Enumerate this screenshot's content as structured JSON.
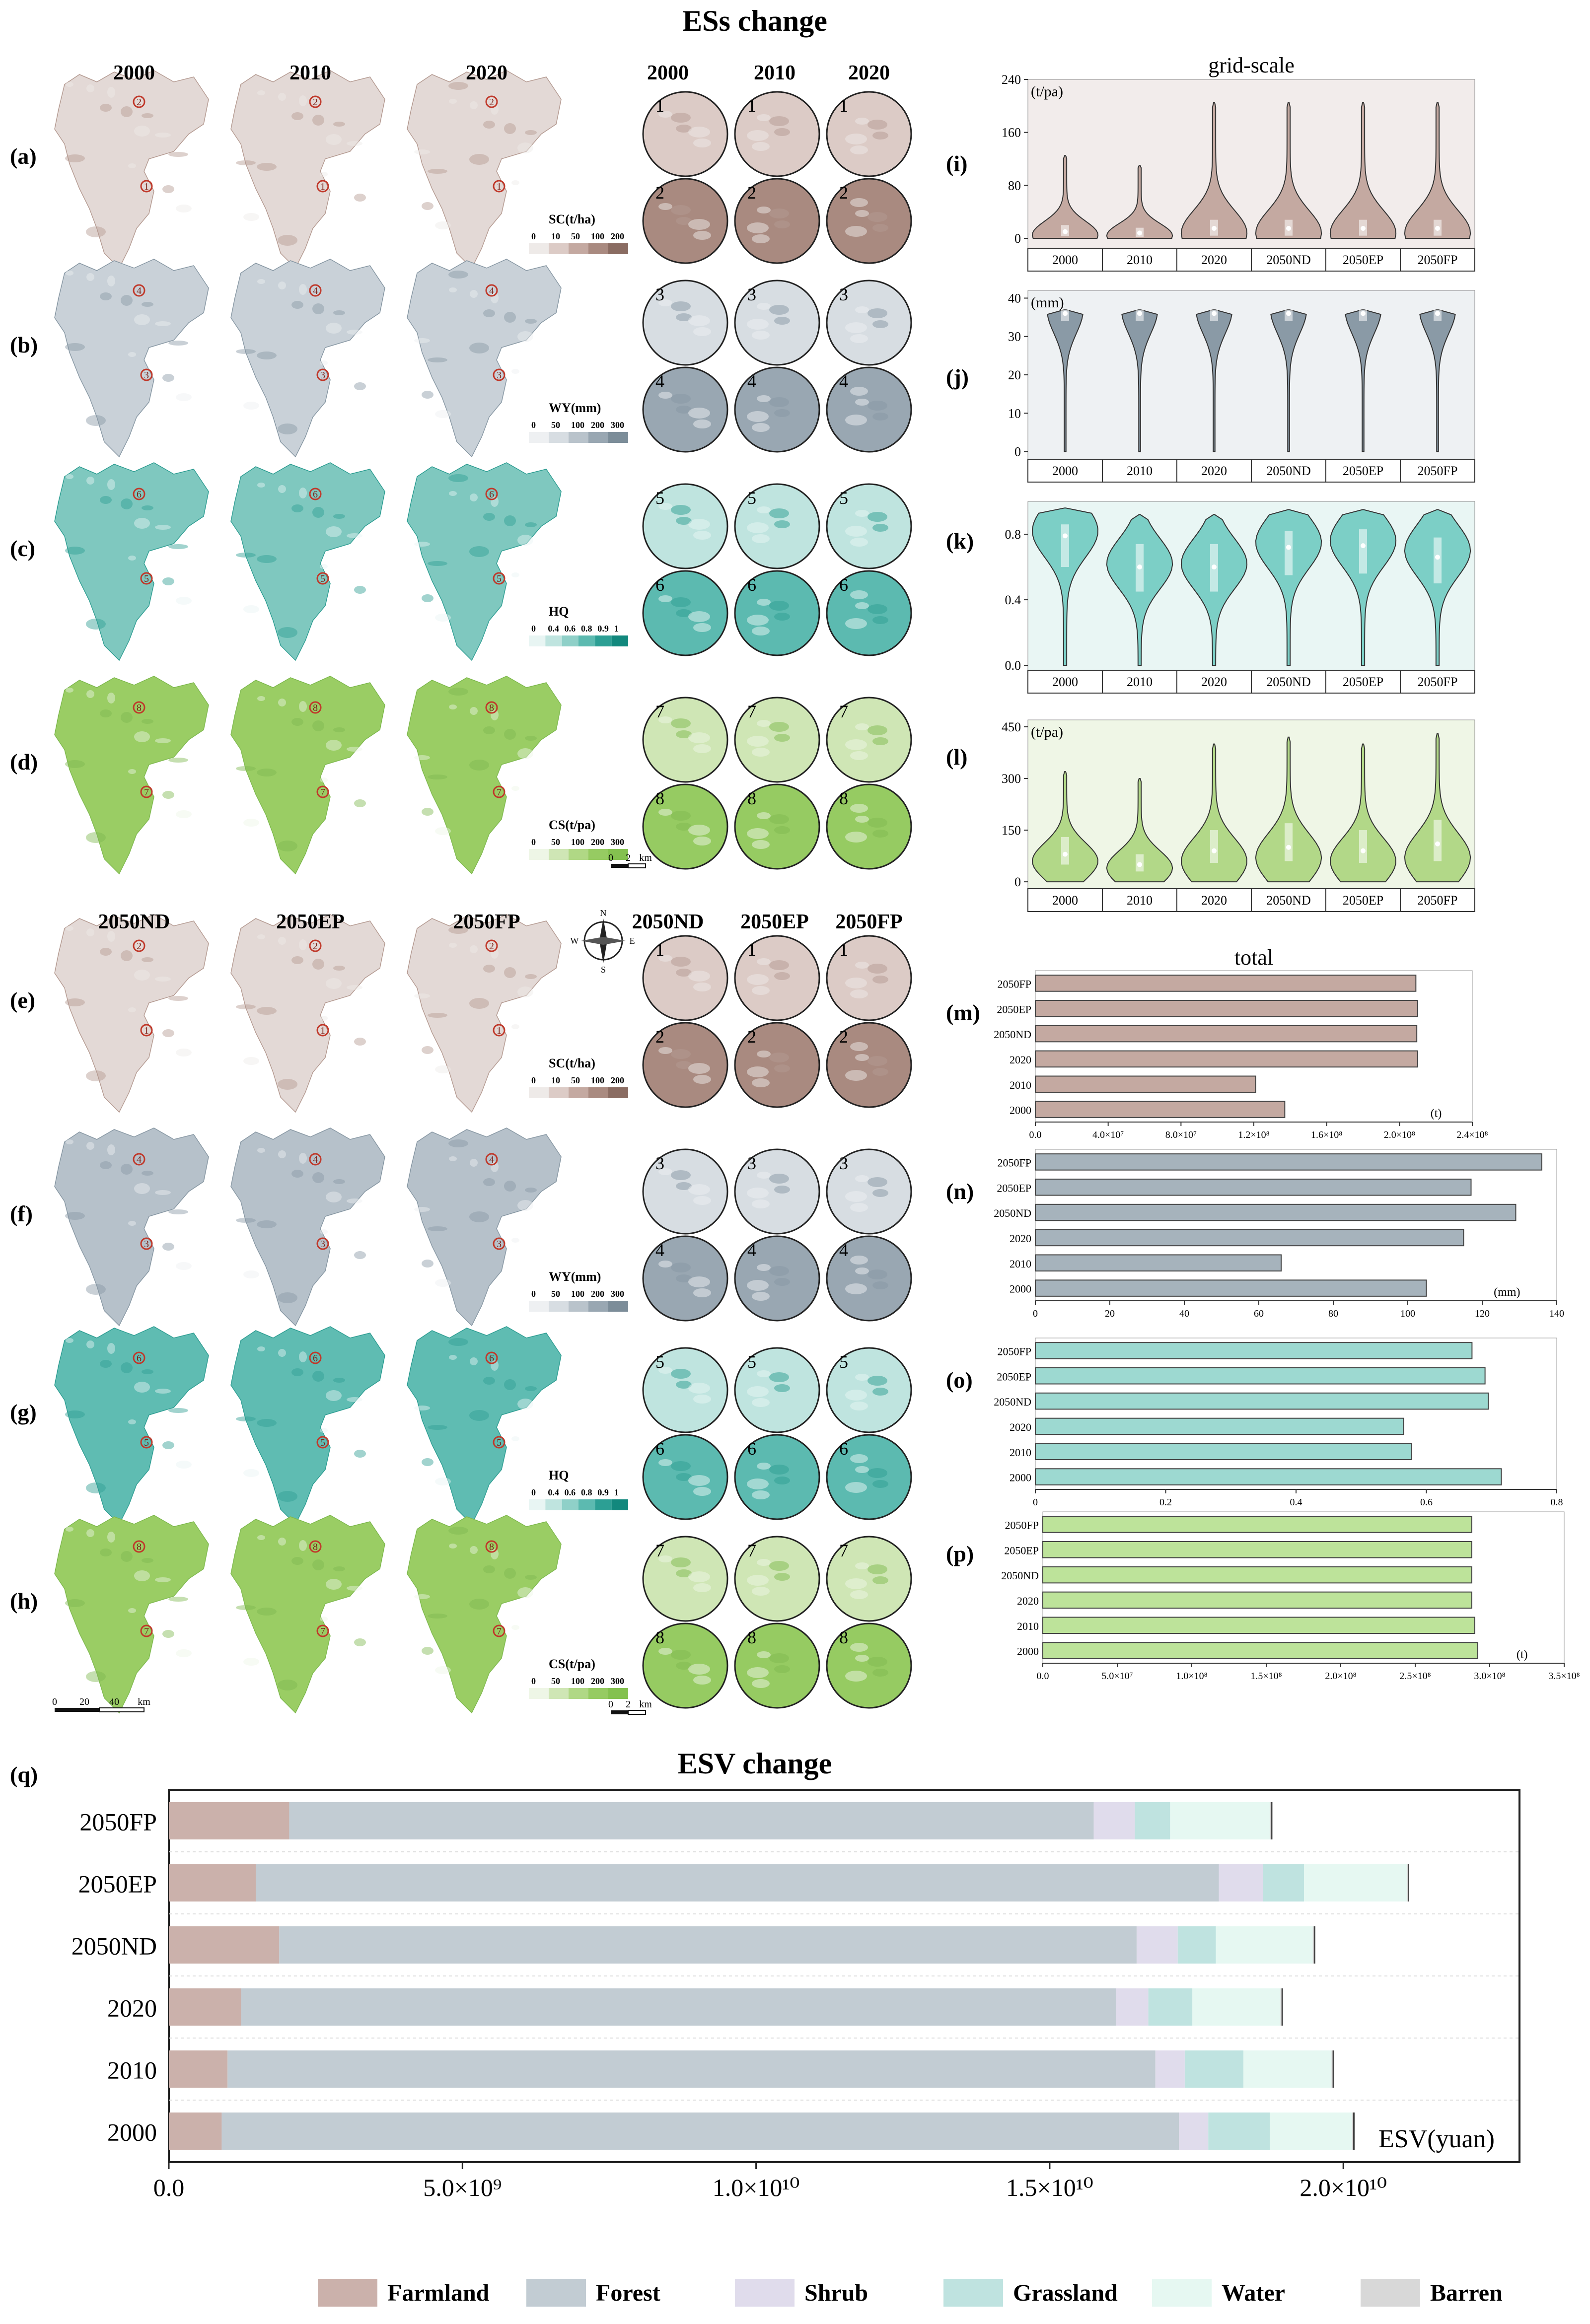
{
  "titles": {
    "top": "ESs change",
    "bottom": "ESV change"
  },
  "map_panels": {
    "year_labels_top": [
      "2000",
      "2010",
      "2020"
    ],
    "year_labels_bottom": [
      "2050ND",
      "2050EP",
      "2050FP"
    ],
    "zoom_labels_top": [
      "2000",
      "2010",
      "2020"
    ],
    "zoom_labels_bottom": [
      "2050ND",
      "2050EP",
      "2050FP"
    ],
    "rows": [
      {
        "letter": "(a)",
        "legend_title": "SC(t/ha)",
        "ticks": [
          "0",
          "10",
          "50",
          "100",
          "200"
        ],
        "colors": [
          "#eeeae8",
          "#dccbc6",
          "#c4a9a1",
          "#a98a80",
          "#8a6c62"
        ],
        "markers": [
          "2",
          "1"
        ],
        "zoom_ids": [
          "1",
          "2"
        ],
        "base": "#e3d9d6",
        "dark": "#b49a91"
      },
      {
        "letter": "(b)",
        "legend_title": "WY(mm)",
        "ticks": [
          "0",
          "50",
          "100",
          "200",
          "300"
        ],
        "colors": [
          "#eef0f2",
          "#d7dde2",
          "#b9c3cb",
          "#99a7b2",
          "#7c8d99"
        ],
        "markers": [
          "4",
          "3"
        ],
        "zoom_ids": [
          "3",
          "4"
        ],
        "base": "#c9d1d8",
        "dark": "#8797a3"
      },
      {
        "letter": "(c)",
        "legend_title": "HQ",
        "ticks": [
          "0",
          "0.4",
          "0.6",
          "0.8",
          "0.9",
          "1"
        ],
        "colors": [
          "#e8f5f3",
          "#bfe4df",
          "#8fd0c8",
          "#5cbab0",
          "#2c9f94",
          "#12887d"
        ],
        "markers": [
          "6",
          "5"
        ],
        "zoom_ids": [
          "5",
          "6"
        ],
        "base": "#7fc8bf",
        "dark": "#2e9d92"
      },
      {
        "letter": "(d)",
        "legend_title": "CS(t/pa)",
        "ticks": [
          "0",
          "50",
          "100",
          "200",
          "300"
        ],
        "colors": [
          "#eef6e6",
          "#cfe6b5",
          "#b0d885",
          "#96cb62",
          "#84c14f"
        ],
        "markers": [
          "8",
          "7"
        ],
        "zoom_ids": [
          "7",
          "8"
        ],
        "base": "#9acd64",
        "dark": "#7fb94f"
      },
      {
        "letter": "(e)",
        "legend_title": "SC(t/ha)",
        "ticks": [
          "0",
          "10",
          "50",
          "100",
          "200"
        ],
        "colors": [
          "#eeeae8",
          "#dccbc6",
          "#c4a9a1",
          "#a98a80",
          "#8a6c62"
        ],
        "markers": [
          "2",
          "1"
        ],
        "zoom_ids": [
          "1",
          "2"
        ],
        "base": "#e3d9d6",
        "dark": "#b49a91"
      },
      {
        "letter": "(f)",
        "legend_title": "WY(mm)",
        "ticks": [
          "0",
          "50",
          "100",
          "200",
          "300"
        ],
        "colors": [
          "#eef0f2",
          "#d7dde2",
          "#b9c3cb",
          "#99a7b2",
          "#7c8d99"
        ],
        "markers": [
          "4",
          "3"
        ],
        "zoom_ids": [
          "3",
          "4"
        ],
        "base": "#b6c1ca",
        "dark": "#8797a3"
      },
      {
        "letter": "(g)",
        "legend_title": "HQ",
        "ticks": [
          "0",
          "0.4",
          "0.6",
          "0.8",
          "0.9",
          "1"
        ],
        "colors": [
          "#e8f5f3",
          "#bfe4df",
          "#8fd0c8",
          "#5cbab0",
          "#2c9f94",
          "#12887d"
        ],
        "markers": [
          "6",
          "5"
        ],
        "zoom_ids": [
          "5",
          "6"
        ],
        "base": "#5fbcb2",
        "dark": "#2e9d92"
      },
      {
        "letter": "(h)",
        "legend_title": "CS(t/pa)",
        "ticks": [
          "0",
          "50",
          "100",
          "200",
          "300"
        ],
        "colors": [
          "#eef6e6",
          "#cfe6b5",
          "#b0d885",
          "#96cb62",
          "#84c14f"
        ],
        "markers": [
          "8",
          "7"
        ],
        "zoom_ids": [
          "7",
          "8"
        ],
        "base": "#9acd64",
        "dark": "#7fb94f"
      }
    ],
    "scalebar_small": [
      "0",
      "2",
      "km"
    ],
    "scalebar_big": [
      "0",
      "20",
      "40",
      "km"
    ],
    "compass": [
      "N",
      "S",
      "W",
      "E"
    ]
  },
  "chart_data": [
    {
      "id": "i",
      "label": "(i)",
      "type": "violin",
      "title": "grid-scale",
      "ylabel": "(t/pa)",
      "categories": [
        "2000",
        "2010",
        "2020",
        "2050ND",
        "2050EP",
        "2050FP"
      ],
      "ylim": [
        -15,
        240
      ],
      "yticks": [
        0,
        80,
        160,
        240
      ],
      "color": "#c4a9a1",
      "bg": "#f2eceb",
      "series": [
        {
          "max": 125,
          "median": 10,
          "q1": 3,
          "q3": 20,
          "mode": 5,
          "width": 1.0
        },
        {
          "max": 110,
          "median": 8,
          "q1": 2,
          "q3": 16,
          "mode": 4,
          "width": 1.0
        },
        {
          "max": 205,
          "median": 15,
          "q1": 4,
          "q3": 28,
          "mode": 8,
          "width": 1.0
        },
        {
          "max": 205,
          "median": 15,
          "q1": 4,
          "q3": 28,
          "mode": 8,
          "width": 1.0
        },
        {
          "max": 205,
          "median": 15,
          "q1": 4,
          "q3": 28,
          "mode": 8,
          "width": 1.0
        },
        {
          "max": 205,
          "median": 15,
          "q1": 4,
          "q3": 28,
          "mode": 8,
          "width": 1.0
        }
      ]
    },
    {
      "id": "j",
      "label": "(j)",
      "type": "violin",
      "title": "",
      "ylabel": "(mm)",
      "categories": [
        "2000",
        "2010",
        "2020",
        "2050ND",
        "2050EP",
        "2050FP"
      ],
      "ylim": [
        -2,
        42
      ],
      "yticks": [
        0,
        10,
        20,
        30,
        40
      ],
      "color": "#8a9aa6",
      "bg": "#eef1f3",
      "series": [
        {
          "max": 37,
          "median": 36,
          "q1": 34,
          "q3": 37,
          "mode": 37,
          "width": 0.55
        },
        {
          "max": 37,
          "median": 36,
          "q1": 34,
          "q3": 37,
          "mode": 37,
          "width": 0.55
        },
        {
          "max": 37,
          "median": 36,
          "q1": 34,
          "q3": 37,
          "mode": 37,
          "width": 0.55
        },
        {
          "max": 37,
          "median": 36,
          "q1": 34,
          "q3": 37,
          "mode": 37,
          "width": 0.55
        },
        {
          "max": 37,
          "median": 36,
          "q1": 34,
          "q3": 37,
          "mode": 37,
          "width": 0.55
        },
        {
          "max": 37,
          "median": 36,
          "q1": 34,
          "q3": 37,
          "mode": 37,
          "width": 0.55
        }
      ]
    },
    {
      "id": "k",
      "label": "(k)",
      "type": "violin",
      "title": "",
      "ylabel": "",
      "categories": [
        "2000",
        "2010",
        "2020",
        "2050ND",
        "2050EP",
        "2050FP"
      ],
      "ylim": [
        -0.03,
        1.0
      ],
      "yticks": [
        0.0,
        0.4,
        0.8
      ],
      "color": "#7ccfc6",
      "bg": "#e9f6f4",
      "series": [
        {
          "max": 0.96,
          "median": 0.79,
          "q1": 0.6,
          "q3": 0.86,
          "mode": 0.82,
          "width": 1.0
        },
        {
          "max": 0.92,
          "median": 0.6,
          "q1": 0.45,
          "q3": 0.74,
          "mode": 0.62,
          "width": 1.0
        },
        {
          "max": 0.92,
          "median": 0.6,
          "q1": 0.45,
          "q3": 0.74,
          "mode": 0.62,
          "width": 1.0
        },
        {
          "max": 0.95,
          "median": 0.72,
          "q1": 0.55,
          "q3": 0.82,
          "mode": 0.75,
          "width": 1.0
        },
        {
          "max": 0.95,
          "median": 0.73,
          "q1": 0.56,
          "q3": 0.83,
          "mode": 0.76,
          "width": 1.0
        },
        {
          "max": 0.95,
          "median": 0.66,
          "q1": 0.5,
          "q3": 0.78,
          "mode": 0.7,
          "width": 1.0
        }
      ]
    },
    {
      "id": "l",
      "label": "(l)",
      "type": "violin",
      "title": "",
      "ylabel": "(t/pa)",
      "categories": [
        "2000",
        "2010",
        "2020",
        "2050ND",
        "2050EP",
        "2050FP"
      ],
      "ylim": [
        -20,
        470
      ],
      "yticks": [
        0,
        150,
        300,
        450
      ],
      "color": "#b2d888",
      "bg": "#eff6e6",
      "series": [
        {
          "max": 320,
          "median": 80,
          "q1": 50,
          "q3": 130,
          "mode": 60,
          "width": 1.0
        },
        {
          "max": 300,
          "median": 50,
          "q1": 30,
          "q3": 80,
          "mode": 40,
          "width": 1.0
        },
        {
          "max": 400,
          "median": 90,
          "q1": 55,
          "q3": 150,
          "mode": 60,
          "width": 1.0
        },
        {
          "max": 420,
          "median": 100,
          "q1": 60,
          "q3": 170,
          "mode": 70,
          "width": 1.0
        },
        {
          "max": 400,
          "median": 90,
          "q1": 55,
          "q3": 150,
          "mode": 60,
          "width": 1.0
        },
        {
          "max": 430,
          "median": 110,
          "q1": 60,
          "q3": 180,
          "mode": 70,
          "width": 1.0
        }
      ]
    },
    {
      "id": "m",
      "label": "(m)",
      "type": "bar",
      "title": "total",
      "unit": "(t)",
      "categories": [
        "2050FP",
        "2050EP",
        "2050ND",
        "2020",
        "2010",
        "2000"
      ],
      "values": [
        209000000,
        210000000,
        209500000,
        210000000,
        121000000,
        137000000
      ],
      "xlim": [
        0,
        240000000
      ],
      "xticks": [
        0,
        40000000,
        80000000,
        120000000,
        160000000,
        200000000,
        240000000
      ],
      "xticklabels": [
        "0.0",
        "4.0×10⁷",
        "8.0×10⁷",
        "1.2×10⁸",
        "1.6×10⁸",
        "2.0×10⁸",
        "2.4×10⁸"
      ],
      "color": "#c4a9a1"
    },
    {
      "id": "n",
      "label": "(n)",
      "type": "bar",
      "title": "",
      "unit": "(mm)",
      "categories": [
        "2050FP",
        "2050EP",
        "2050ND",
        "2020",
        "2010",
        "2000"
      ],
      "values": [
        136,
        117,
        129,
        115,
        66,
        105
      ],
      "xlim": [
        0,
        140
      ],
      "xticks": [
        0,
        20,
        40,
        60,
        80,
        100,
        120,
        140
      ],
      "xticklabels": [
        "0",
        "20",
        "40",
        "60",
        "80",
        "100",
        "120",
        "140"
      ],
      "color": "#a6b3bc"
    },
    {
      "id": "o",
      "label": "(o)",
      "type": "bar",
      "title": "",
      "unit": "",
      "categories": [
        "2050FP",
        "2050EP",
        "2050ND",
        "2020",
        "2010",
        "2000"
      ],
      "values": [
        0.67,
        0.69,
        0.695,
        0.565,
        0.577,
        0.715
      ],
      "xlim": [
        0,
        0.8
      ],
      "xticks": [
        0,
        0.2,
        0.4,
        0.6,
        0.8
      ],
      "xticklabels": [
        "0",
        "0.2",
        "0.4",
        "0.6",
        "0.8"
      ],
      "color": "#9dd9d1"
    },
    {
      "id": "p",
      "label": "(p)",
      "type": "bar",
      "title": "",
      "unit": "(t)",
      "categories": [
        "2050FP",
        "2050EP",
        "2050ND",
        "2020",
        "2010",
        "2000"
      ],
      "values": [
        288000000,
        288000000,
        288000000,
        288000000,
        290000000,
        292000000
      ],
      "xlim": [
        0,
        350000000
      ],
      "xticks": [
        0,
        50000000,
        100000000,
        150000000,
        200000000,
        250000000,
        300000000,
        350000000
      ],
      "xticklabels": [
        "0.0",
        "5.0×10⁷",
        "1.0×10⁸",
        "1.5×10⁸",
        "2.0×10⁸",
        "2.5×10⁸",
        "3.0×10⁸",
        "3.5×10⁸"
      ],
      "color": "#bde39a"
    },
    {
      "id": "q",
      "label": "(q)",
      "type": "stacked-bar",
      "title": "ESV change",
      "unit": "ESV(yuan)",
      "categories": [
        "2050FP",
        "2050EP",
        "2050ND",
        "2020",
        "2010",
        "2000"
      ],
      "xlim": [
        0,
        23000000000
      ],
      "xticks": [
        0,
        5000000000,
        10000000000,
        15000000000,
        20000000000
      ],
      "xticklabels": [
        "0.0",
        "5.0×10⁹",
        "1.0×10¹⁰",
        "1.5×10¹⁰",
        "2.0×10¹⁰"
      ],
      "series": [
        {
          "name": "Farmland",
          "color": "#cbb1ab",
          "values": [
            2050000000,
            1480000000,
            1880000000,
            1230000000,
            1000000000,
            900000000
          ]
        },
        {
          "name": "Forest",
          "color": "#c2ccd3",
          "values": [
            13700000000,
            16400000000,
            14600000000,
            14900000000,
            15800000000,
            16300000000
          ]
        },
        {
          "name": "Shrub",
          "color": "#e0dcec",
          "values": [
            700000000,
            750000000,
            700000000,
            550000000,
            500000000,
            500000000
          ]
        },
        {
          "name": "Grassland",
          "color": "#bfe3e0",
          "values": [
            600000000,
            700000000,
            650000000,
            750000000,
            1000000000,
            1050000000
          ]
        },
        {
          "name": "Water",
          "color": "#e6f8f2",
          "values": [
            1700000000,
            1750000000,
            1650000000,
            1500000000,
            1500000000,
            1400000000
          ]
        },
        {
          "name": "Barren",
          "color": "#d8d8d8",
          "values": [
            30000000,
            30000000,
            30000000,
            30000000,
            30000000,
            30000000
          ]
        }
      ]
    }
  ]
}
